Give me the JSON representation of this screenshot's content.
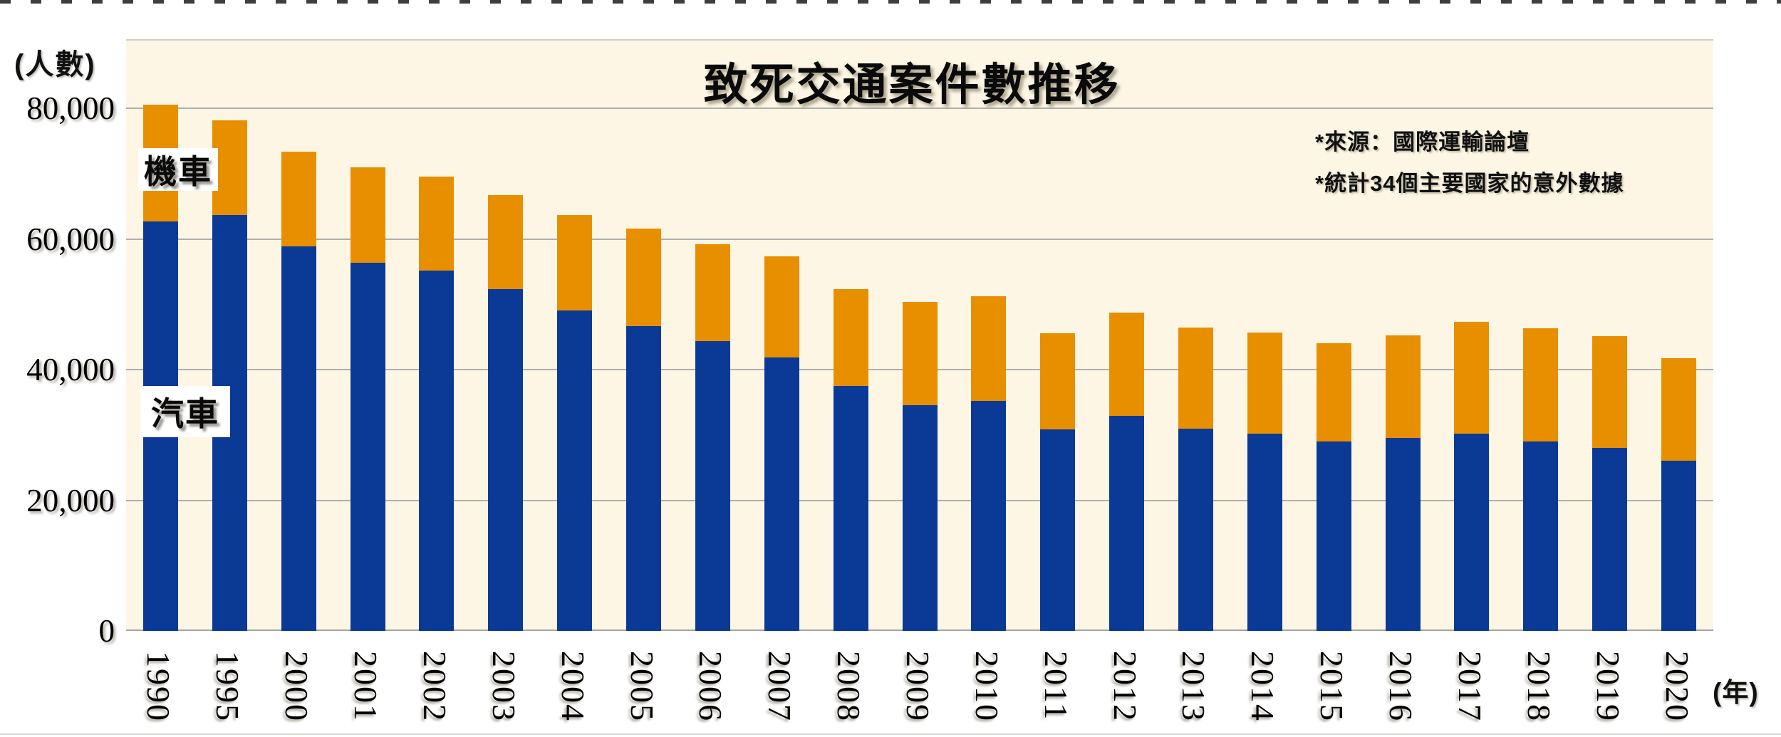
{
  "chart_data": {
    "type": "bar",
    "stacked": true,
    "title": "致死交通案件數推移",
    "ylabel_unit": "(人數)",
    "xlabel_unit": "(年)",
    "annotations": [
      "*來源：國際運輸論壇",
      "*統計34個主要國家的意外數據"
    ],
    "legend": {
      "moto": "機車",
      "car": "汽車"
    },
    "colors": {
      "car": "#0B3996",
      "moto": "#E88F00",
      "plot_bg": "#FDF6E4",
      "gridline": "#AEAEAE"
    },
    "grid": true,
    "legend_position": "overlay-on-bars",
    "ylim": [
      0,
      80000
    ],
    "yticks": [
      {
        "value": 0,
        "label": "0"
      },
      {
        "value": 20000,
        "label": "20,000"
      },
      {
        "value": 40000,
        "label": "40,000"
      },
      {
        "value": 60000,
        "label": "60,000"
      },
      {
        "value": 80000,
        "label": "80,000"
      }
    ],
    "categories": [
      "1990",
      "1995",
      "2000",
      "2001",
      "2002",
      "2003",
      "2004",
      "2005",
      "2006",
      "2007",
      "2008",
      "2009",
      "2010",
      "2011",
      "2012",
      "2013",
      "2014",
      "2015",
      "2016",
      "2017",
      "2018",
      "2019",
      "2020"
    ],
    "series": [
      {
        "name": "汽車",
        "key": "car",
        "values": [
          62700,
          63600,
          58900,
          56300,
          55200,
          52300,
          49000,
          46700,
          44400,
          41900,
          37500,
          34600,
          35200,
          30800,
          32900,
          30900,
          30200,
          29000,
          29500,
          30200,
          29000,
          28000,
          26100
        ]
      },
      {
        "name": "機車",
        "key": "moto",
        "values": [
          17800,
          14500,
          14400,
          14700,
          14300,
          14400,
          14600,
          14900,
          14800,
          15400,
          14800,
          15700,
          16000,
          14800,
          15800,
          15500,
          15500,
          15000,
          15700,
          17100,
          17300,
          17100,
          15600
        ]
      }
    ]
  }
}
